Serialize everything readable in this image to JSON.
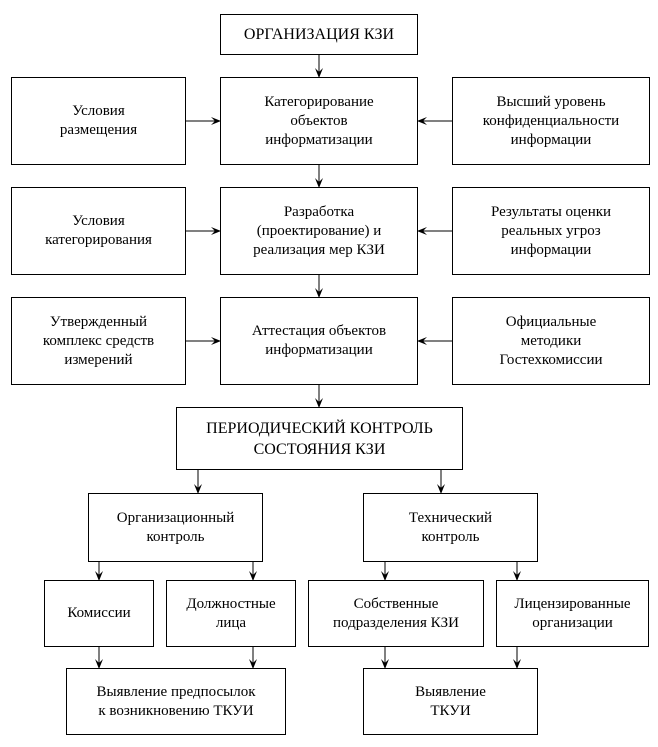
{
  "diagram": {
    "top": "ОРГАНИЗАЦИЯ КЗИ",
    "row1": {
      "left": "Условия\nразмещения",
      "center": "Категорирование\nобъектов\nинформатизации",
      "right": "Высший уровень\nконфиденциальности\nинформации"
    },
    "row2": {
      "left": "Условия\nкатегорирования",
      "center": "Разработка\n(проектирование) и\nреализация мер КЗИ",
      "right": "Результаты оценки\nреальных угроз\nинформации"
    },
    "row3": {
      "left": "Утвержденный\nкомплекс средств\nизмерений",
      "center": "Аттестация объектов\nинформатизации",
      "right": "Официальные\nметодики\nГостехкомиссии"
    },
    "periodic": "ПЕРИОДИЧЕСКИЙ КОНТРОЛЬ\nСОСТОЯНИЯ КЗИ",
    "org_control": "Организационный\nконтроль",
    "tech_control": "Технический\nконтроль",
    "commissions": "Комиссии",
    "officials": "Должностные\nлица",
    "own_units": "Собственные\nподразделения КЗИ",
    "licensed": "Лицензированные\nорганизации",
    "org_result": "Выявление предпосылок\nк возникновению ТКУИ",
    "tech_result": "Выявление\nТКУИ"
  }
}
